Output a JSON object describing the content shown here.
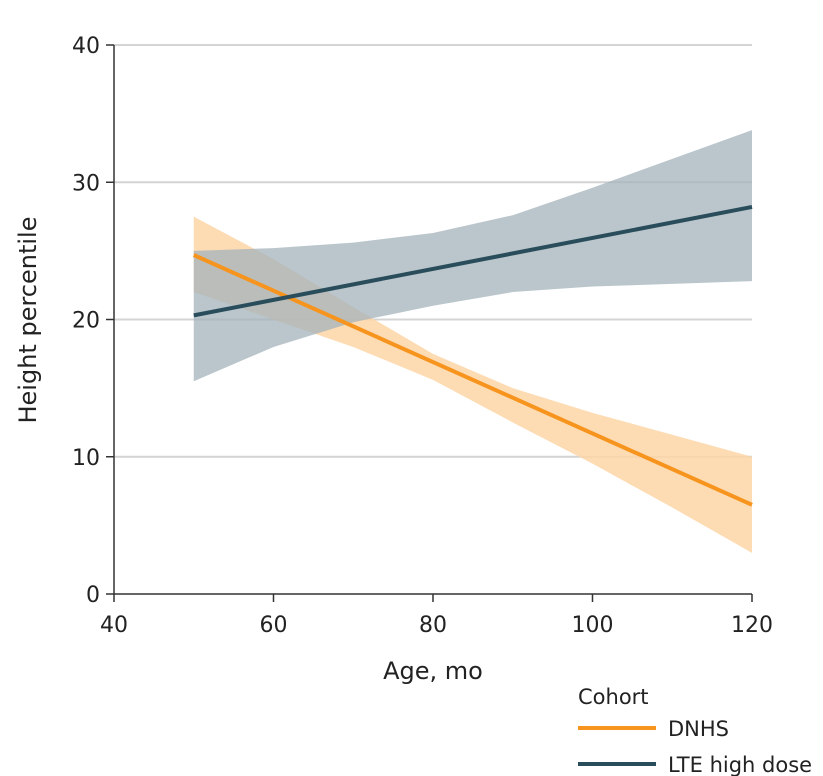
{
  "chart_data": {
    "type": "line",
    "title": "",
    "xlabel": "Age, mo",
    "ylabel": "Height percentile",
    "xlim": [
      40,
      120
    ],
    "ylim": [
      0,
      40
    ],
    "x_ticks": [
      40,
      60,
      80,
      100,
      120
    ],
    "y_ticks": [
      0,
      10,
      20,
      30,
      40
    ],
    "grid": "horizontal",
    "legend": {
      "title": "Cohort",
      "position": "bottom-right"
    },
    "series": [
      {
        "name": "DNHS",
        "color": "#f7941d",
        "band_color": "#fdd5a6",
        "x": [
          50,
          120
        ],
        "y": [
          24.7,
          6.5
        ],
        "ci_x": [
          50,
          60,
          70,
          80,
          90,
          100,
          110,
          120
        ],
        "ci_upper": [
          27.5,
          24.4,
          20.9,
          17.5,
          15.0,
          13.2,
          11.6,
          10.0
        ],
        "ci_lower": [
          22.0,
          20.0,
          18.0,
          15.6,
          12.5,
          9.5,
          6.3,
          3.0
        ]
      },
      {
        "name": "LTE high dose",
        "color": "#2a4d5c",
        "band_color": "#a3b3bb",
        "x": [
          50,
          120
        ],
        "y": [
          20.3,
          28.2
        ],
        "ci_x": [
          50,
          60,
          70,
          80,
          90,
          100,
          110,
          120
        ],
        "ci_upper": [
          25.0,
          25.2,
          25.6,
          26.3,
          27.6,
          29.6,
          31.7,
          33.8
        ],
        "ci_lower": [
          15.5,
          18.0,
          19.8,
          21.0,
          22.0,
          22.4,
          22.6,
          22.8
        ]
      }
    ]
  }
}
